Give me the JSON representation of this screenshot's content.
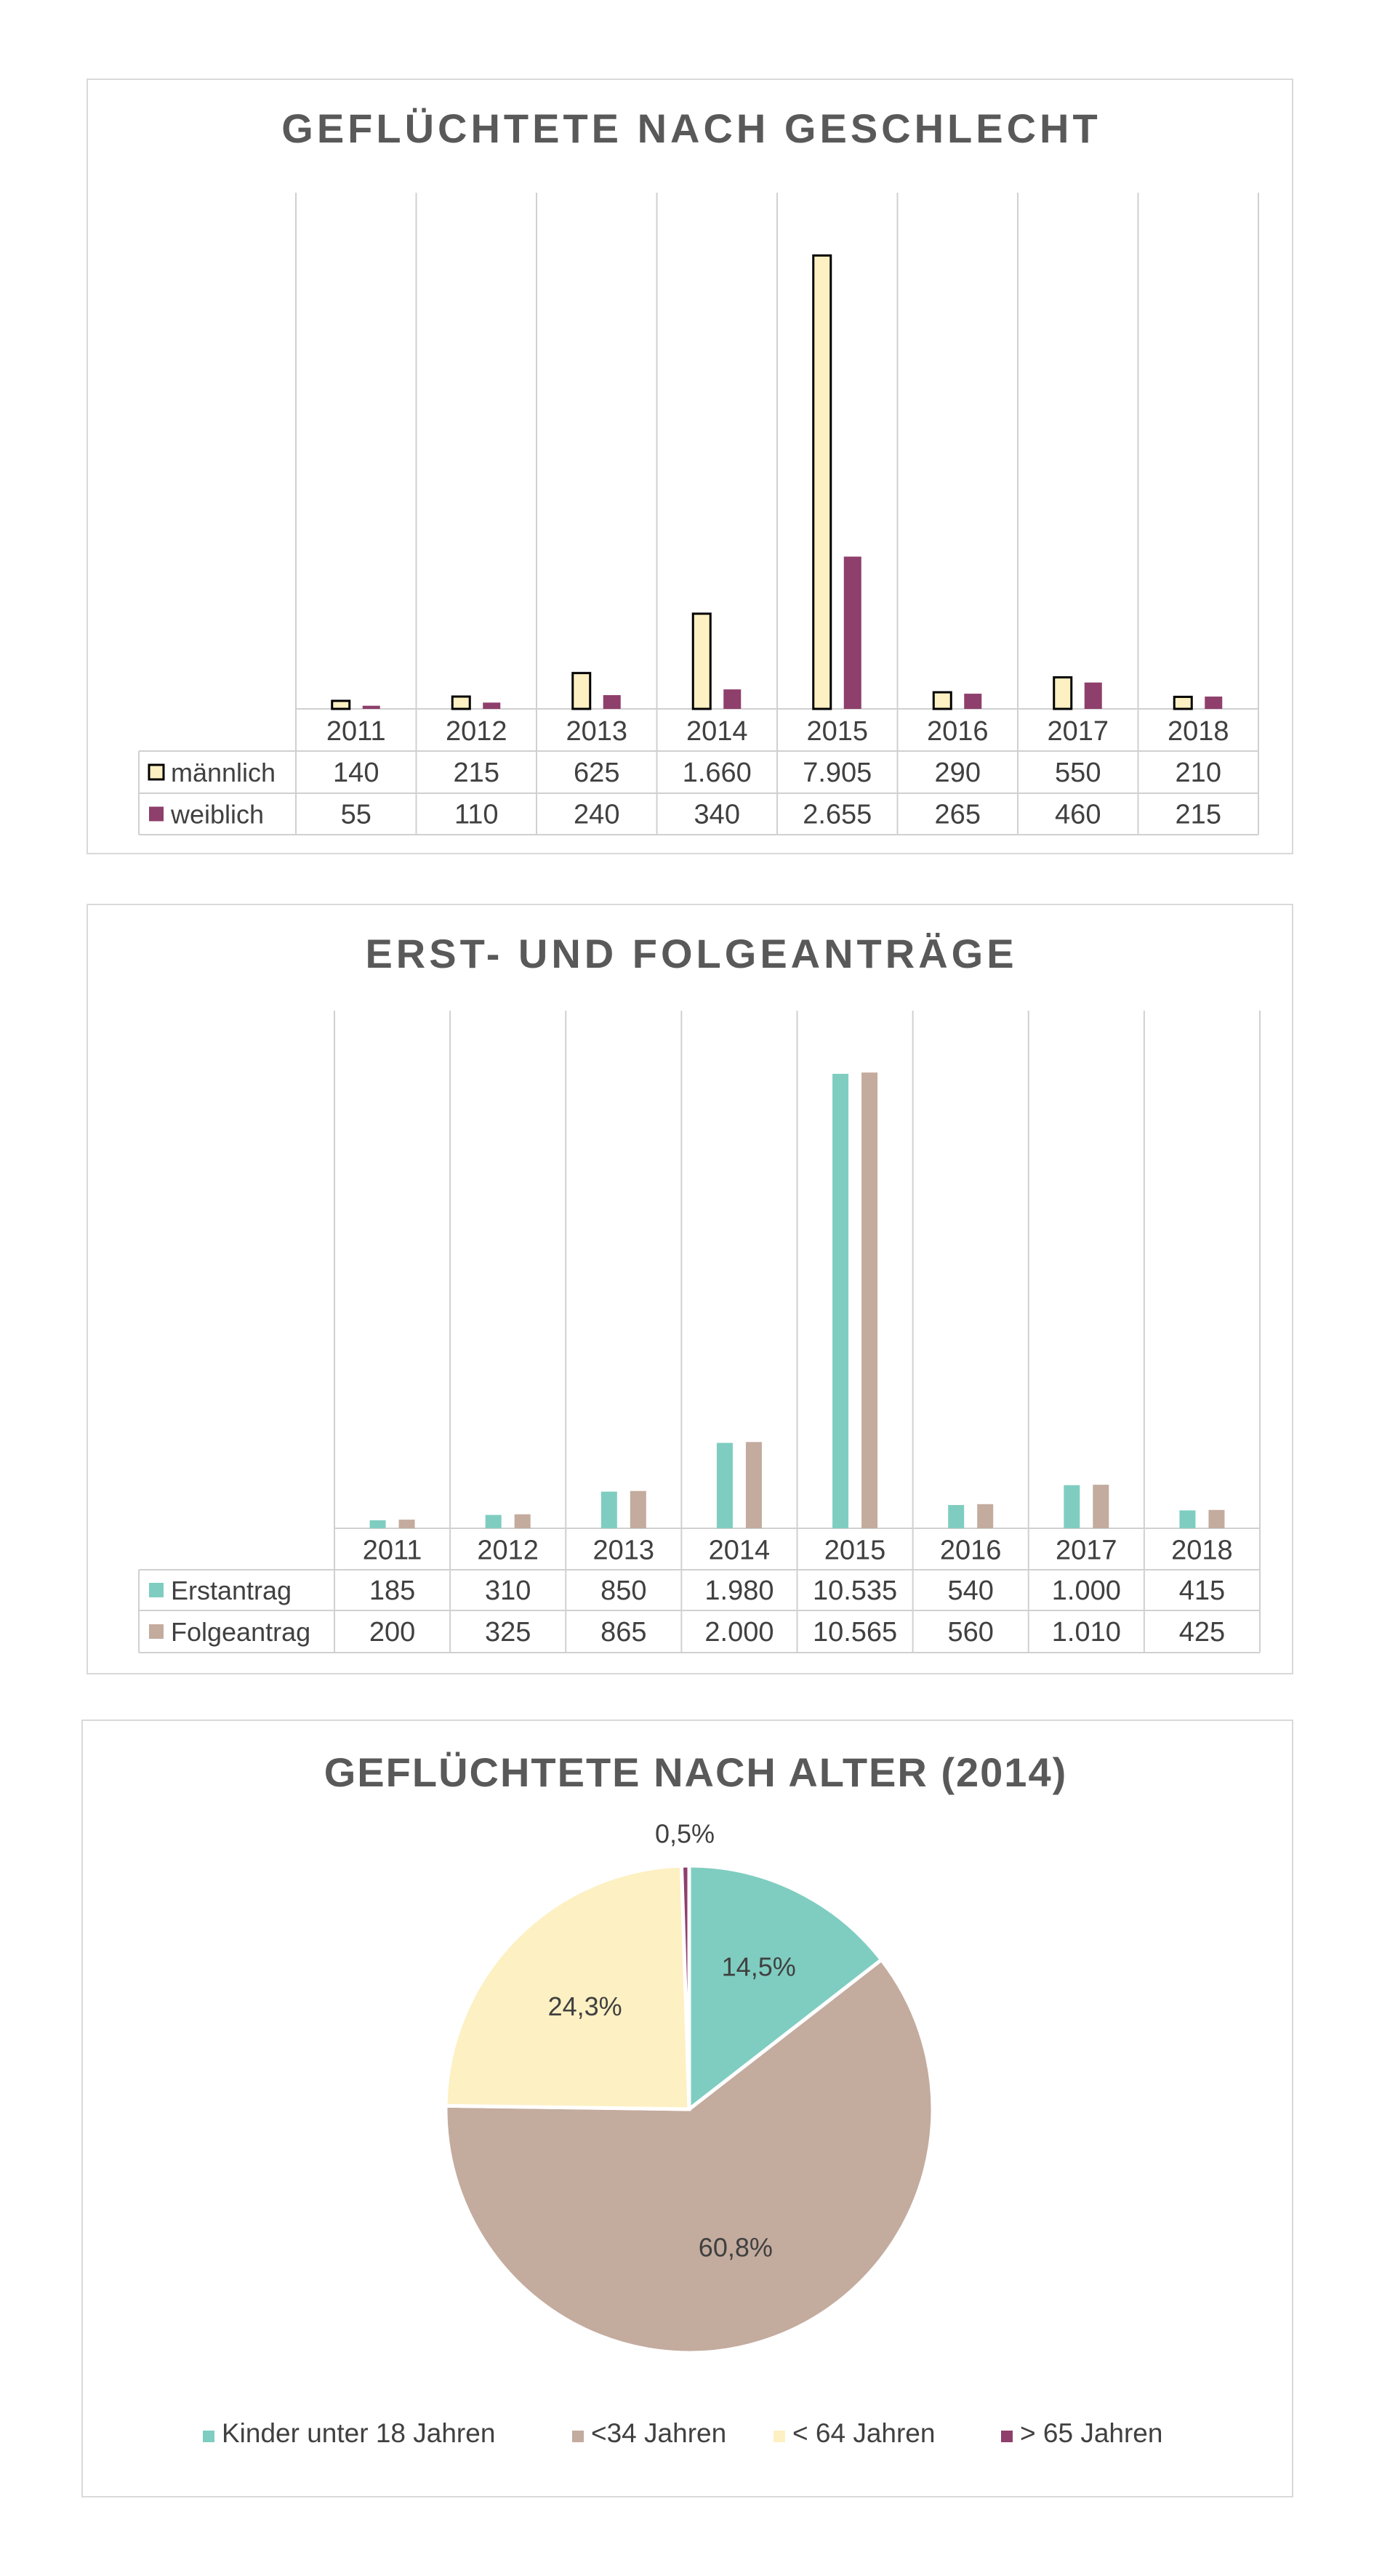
{
  "charts": {
    "gender": {
      "title": "GEFLÜCHTETE NACH GESCHLECHT",
      "colors": {
        "bar_stroke": "#000000"
      }
    },
    "applications": {
      "title": "ERST- UND FOLGEANTRÄGE"
    },
    "age": {
      "title": "GEFLÜCHTETE NACH ALTER (2014)"
    }
  },
  "chart_data": [
    {
      "type": "bar",
      "title": "GEFLÜCHTETE NACH GESCHLECHT",
      "categories": [
        "2011",
        "2012",
        "2013",
        "2014",
        "2015",
        "2016",
        "2017",
        "2018"
      ],
      "series": [
        {
          "name": "männlich",
          "values": [
            140,
            215,
            625,
            1660,
            7905,
            290,
            550,
            210
          ],
          "labels": [
            "140",
            "215",
            "625",
            "1.660",
            "7.905",
            "290",
            "550",
            "210"
          ],
          "color": "#fdf0c2"
        },
        {
          "name": "weiblich",
          "values": [
            55,
            110,
            240,
            340,
            2655,
            265,
            460,
            215
          ],
          "labels": [
            "55",
            "110",
            "240",
            "340",
            "2.655",
            "265",
            "460",
            "215"
          ],
          "color": "#8e3f6b"
        }
      ],
      "ylim": [
        0,
        9000
      ],
      "data_table": true,
      "grid": true
    },
    {
      "type": "bar",
      "title": "ERST- UND FOLGEANTRÄGE",
      "categories": [
        "2011",
        "2012",
        "2013",
        "2014",
        "2015",
        "2016",
        "2017",
        "2018"
      ],
      "series": [
        {
          "name": "Erstantrag",
          "values": [
            185,
            310,
            850,
            1980,
            10535,
            540,
            1000,
            415
          ],
          "labels": [
            "185",
            "310",
            "850",
            "1.980",
            "10.535",
            "540",
            "1.000",
            "415"
          ],
          "color": "#7fcdc0"
        },
        {
          "name": "Folgeantrag",
          "values": [
            200,
            325,
            865,
            2000,
            10565,
            560,
            1010,
            425
          ],
          "labels": [
            "200",
            "325",
            "865",
            "2.000",
            "10.565",
            "560",
            "1.010",
            "425"
          ],
          "color": "#c3ab9e"
        }
      ],
      "ylim": [
        0,
        12000
      ],
      "data_table": true,
      "grid": true
    },
    {
      "type": "pie",
      "title": "GEFLÜCHTETE NACH ALTER (2014)",
      "slices": [
        {
          "name": "Kinder unter 18 Jahren",
          "value": 14.5,
          "label": "14,5%",
          "color": "#7fcdc0"
        },
        {
          "name": "<34 Jahren",
          "value": 60.8,
          "label": "60,8%",
          "color": "#c3ab9e"
        },
        {
          "name": "< 64 Jahren",
          "value": 24.3,
          "label": "24,3%",
          "color": "#fdf0c2"
        },
        {
          "name": "> 65 Jahren",
          "value": 0.5,
          "label": "0,5%",
          "color": "#8e3f6b"
        }
      ],
      "legend": "bottom"
    }
  ]
}
